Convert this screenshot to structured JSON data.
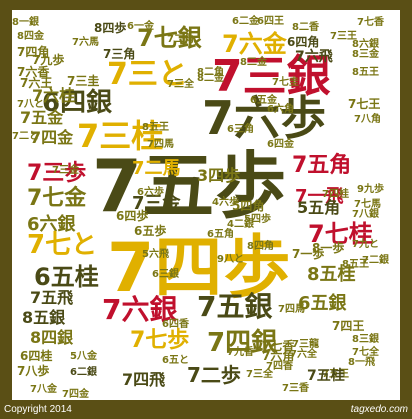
{
  "colors": {
    "frame": "#5a4f15",
    "dark": "#4a4a16",
    "olive": "#7a7615",
    "gold": "#e0b000",
    "red": "#c0102d",
    "orange": "#e0831a",
    "footer": "#ffffff"
  },
  "words": [
    {
      "text": "7五歩",
      "color": "dark"
    },
    {
      "text": "7四歩",
      "color": "gold"
    },
    {
      "text": "7六歩",
      "color": "dark"
    },
    {
      "text": "7三銀",
      "color": "red"
    },
    {
      "text": "7三と",
      "color": "gold"
    },
    {
      "text": "7六金",
      "color": "gold"
    },
    {
      "text": "7七銀",
      "color": "olive"
    },
    {
      "text": "6四銀",
      "color": "dark"
    },
    {
      "text": "7三桂",
      "color": "gold"
    },
    {
      "text": "7五金",
      "color": "olive"
    },
    {
      "text": "7六桂",
      "color": "olive"
    },
    {
      "text": "7四金",
      "color": "olive"
    },
    {
      "text": "7三歩",
      "color": "red"
    },
    {
      "text": "7七金",
      "color": "olive"
    },
    {
      "text": "6六銀",
      "color": "olive"
    },
    {
      "text": "7七と",
      "color": "gold"
    },
    {
      "text": "6五桂",
      "color": "dark"
    },
    {
      "text": "7五飛",
      "color": "dark"
    },
    {
      "text": "8五銀",
      "color": "dark"
    },
    {
      "text": "8四銀",
      "color": "olive"
    },
    {
      "text": "7六銀",
      "color": "red"
    },
    {
      "text": "7七歩",
      "color": "gold"
    },
    {
      "text": "7五銀",
      "color": "dark"
    },
    {
      "text": "7四銀",
      "color": "olive"
    },
    {
      "text": "7五角",
      "color": "red"
    },
    {
      "text": "7七桂",
      "color": "red"
    },
    {
      "text": "8五桂",
      "color": "olive"
    },
    {
      "text": "6五銀",
      "color": "olive"
    },
    {
      "text": "7一飛",
      "color": "red"
    },
    {
      "text": "7二馬",
      "color": "gold"
    },
    {
      "text": "3四歩",
      "color": "olive"
    },
    {
      "text": "7三金",
      "color": "dark"
    },
    {
      "text": "7二歩",
      "color": "dark"
    },
    {
      "text": "7四飛",
      "color": "dark"
    },
    {
      "text": "5五角",
      "color": "dark"
    },
    {
      "text": "6四角",
      "color": "dark"
    },
    {
      "text": "7六飛",
      "color": "dark"
    },
    {
      "text": "6四歩",
      "color": "olive"
    },
    {
      "text": "6五歩",
      "color": "olive"
    },
    {
      "text": "7四角",
      "color": "olive"
    },
    {
      "text": "7六香",
      "color": "olive"
    },
    {
      "text": "7六王",
      "color": "olive"
    },
    {
      "text": "7九歩",
      "color": "olive"
    },
    {
      "text": "7三圭",
      "color": "olive"
    },
    {
      "text": "8四歩",
      "color": "dark"
    },
    {
      "text": "7三角",
      "color": "dark"
    },
    {
      "text": "7八と",
      "color": "olive"
    },
    {
      "text": "8二金",
      "color": "olive"
    },
    {
      "text": "6五金",
      "color": "olive"
    },
    {
      "text": "7七圭",
      "color": "olive"
    },
    {
      "text": "6六角",
      "color": "olive"
    },
    {
      "text": "6四金",
      "color": "olive"
    },
    {
      "text": "7七香",
      "color": "olive"
    },
    {
      "text": "8三銀",
      "color": "olive"
    },
    {
      "text": "7四王",
      "color": "olive"
    },
    {
      "text": "7八歩",
      "color": "olive"
    },
    {
      "text": "7六角",
      "color": "olive"
    },
    {
      "text": "7四桂",
      "color": "olive"
    },
    {
      "text": "7八金",
      "color": "olive"
    },
    {
      "text": "7五王",
      "color": "olive"
    },
    {
      "text": "8六銀",
      "color": "olive"
    },
    {
      "text": "6四桂",
      "color": "olive"
    },
    {
      "text": "5八金",
      "color": "olive"
    },
    {
      "text": "6二銀",
      "color": "dark"
    },
    {
      "text": "7四香",
      "color": "olive"
    },
    {
      "text": "7四金",
      "color": "olive"
    },
    {
      "text": "8一銀",
      "color": "olive"
    },
    {
      "text": "8四金",
      "color": "olive"
    },
    {
      "text": "7六馬",
      "color": "olive"
    },
    {
      "text": "8三金",
      "color": "olive"
    },
    {
      "text": "7三全",
      "color": "olive"
    },
    {
      "text": "7五桂",
      "color": "dark"
    },
    {
      "text": "7四馬",
      "color": "olive"
    },
    {
      "text": "7六全",
      "color": "olive"
    },
    {
      "text": "7三香",
      "color": "olive"
    },
    {
      "text": "8一歩",
      "color": "olive"
    },
    {
      "text": "7一歩",
      "color": "olive"
    },
    {
      "text": "6三銀",
      "color": "olive"
    },
    {
      "text": "5四角",
      "color": "olive"
    },
    {
      "text": "6五角",
      "color": "olive"
    },
    {
      "text": "4六歩",
      "color": "olive"
    },
    {
      "text": "5四歩",
      "color": "olive"
    },
    {
      "text": "4二銀",
      "color": "olive"
    },
    {
      "text": "6六歩",
      "color": "olive"
    },
    {
      "text": "8五王",
      "color": "olive"
    },
    {
      "text": "7八銀",
      "color": "olive"
    },
    {
      "text": "7二銀",
      "color": "olive"
    },
    {
      "text": "7二角",
      "color": "olive"
    },
    {
      "text": "7八角",
      "color": "olive"
    },
    {
      "text": "7七馬",
      "color": "olive"
    },
    {
      "text": "9九歩",
      "color": "olive"
    },
    {
      "text": "7三龍",
      "color": "olive"
    },
    {
      "text": "8一飛",
      "color": "olive"
    },
    {
      "text": "7七王",
      "color": "olive"
    },
    {
      "text": "6二金",
      "color": "olive"
    },
    {
      "text": "6四王",
      "color": "olive"
    },
    {
      "text": "8二角",
      "color": "olive"
    },
    {
      "text": "8二金",
      "color": "olive"
    },
    {
      "text": "7二と",
      "color": "olive"
    },
    {
      "text": "6一金",
      "color": "olive"
    },
    {
      "text": "8二香",
      "color": "olive"
    },
    {
      "text": "6三角",
      "color": "olive"
    },
    {
      "text": "7七全",
      "color": "olive"
    },
    {
      "text": "7四馬",
      "color": "olive"
    },
    {
      "text": "7九と",
      "color": "olive"
    },
    {
      "text": "7三金",
      "color": "olive"
    },
    {
      "text": "7七香",
      "color": "olive"
    },
    {
      "text": "8五王",
      "color": "olive"
    },
    {
      "text": "8五王",
      "color": "olive"
    },
    {
      "text": "7九香",
      "color": "olive"
    },
    {
      "text": "6四香",
      "color": "olive"
    },
    {
      "text": "7三王",
      "color": "olive"
    },
    {
      "text": "6五と",
      "color": "olive"
    },
    {
      "text": "5六飛",
      "color": "olive"
    },
    {
      "text": "9八と",
      "color": "olive"
    },
    {
      "text": "7三全",
      "color": "olive"
    },
    {
      "text": "8四角",
      "color": "olive"
    }
  ],
  "footer": {
    "copyright": "Copyright 2014",
    "site": "tagxedo.com"
  }
}
